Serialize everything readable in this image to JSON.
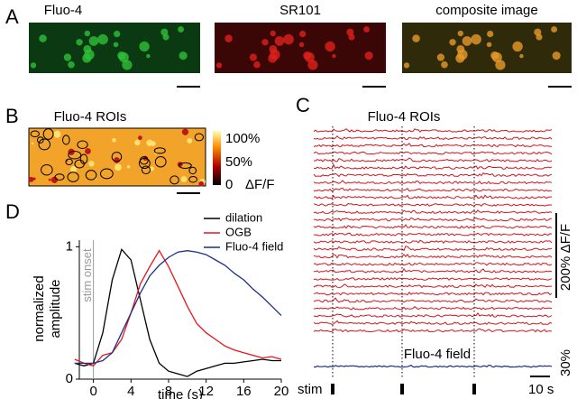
{
  "panels": {
    "a": {
      "label": "A",
      "images": [
        "Fluo-4",
        "SR101",
        "composite image"
      ]
    },
    "b": {
      "label": "B",
      "title": "Fluo-4 ROIs",
      "colorbar": [
        "100%",
        "50%",
        "0"
      ],
      "colorbar_unit": "ΔF/F"
    },
    "c": {
      "label": "C",
      "title": "Fluo-4 ROIs",
      "field_title": "Fluo-4 field",
      "scale_y1": "200% ΔF/F",
      "scale_y2": "30%",
      "stim": "stim",
      "scale_x": "10 s"
    },
    "d": {
      "label": "D"
    }
  },
  "chart_data": {
    "type": "line",
    "xlabel": "time (s)",
    "ylabel": [
      "normalized",
      "amplitude"
    ],
    "annotation": "stim onset",
    "x": [
      -2,
      -1,
      0,
      1,
      2,
      3,
      4,
      5,
      6,
      7,
      8,
      9,
      10,
      11,
      12,
      13,
      14,
      15,
      16,
      17,
      18,
      19,
      20
    ],
    "series": [
      {
        "name": "dilation",
        "color": "#000000",
        "values": [
          0.12,
          0.1,
          0.12,
          0.35,
          0.75,
          0.98,
          0.9,
          0.6,
          0.3,
          0.12,
          0.06,
          0.04,
          0.02,
          0.06,
          0.08,
          0.1,
          0.12,
          0.12,
          0.13,
          0.14,
          0.15,
          0.14,
          0.14
        ]
      },
      {
        "name": "OGB",
        "color": "#e8141c",
        "values": [
          0.15,
          0.12,
          0.1,
          0.18,
          0.2,
          0.3,
          0.5,
          0.72,
          0.85,
          0.97,
          0.85,
          0.7,
          0.55,
          0.42,
          0.35,
          0.3,
          0.25,
          0.22,
          0.2,
          0.18,
          0.16,
          0.17,
          0.15
        ]
      },
      {
        "name": "Fluo-4 field",
        "color": "#1c2f8c",
        "values": [
          0.12,
          0.12,
          0.12,
          0.14,
          0.2,
          0.35,
          0.5,
          0.65,
          0.78,
          0.86,
          0.92,
          0.96,
          0.97,
          0.96,
          0.94,
          0.9,
          0.86,
          0.8,
          0.75,
          0.68,
          0.62,
          0.55,
          0.48
        ]
      }
    ],
    "xlim": [
      -1.5,
      20
    ],
    "ylim": [
      0,
      1.05
    ],
    "xticks": [
      0,
      4,
      8,
      12,
      16,
      20
    ],
    "yticks": [
      0,
      1
    ]
  }
}
